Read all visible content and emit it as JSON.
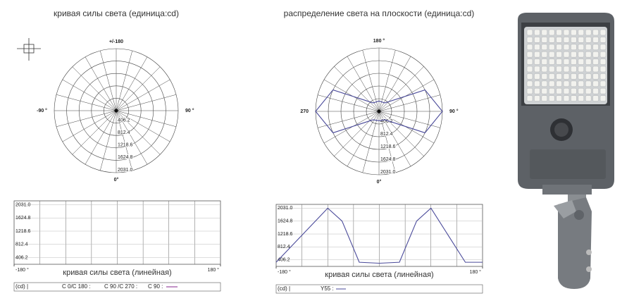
{
  "chart_data": [
    {
      "type": "polar",
      "title": "кривая силы света (единица:cd)",
      "rlim": [
        0,
        2031
      ],
      "rticks": [
        406.2,
        812.4,
        1218.6,
        1624.8,
        {
          "value": 2031,
          "label": "2031.0"
        }
      ],
      "angle_labels": [
        {
          "value": 180,
          "label": "+/-180"
        },
        {
          "value": -90,
          "label": "-90 °"
        },
        {
          "value": 90,
          "label": "90 °"
        },
        {
          "value": 0,
          "label": "0°"
        }
      ],
      "grid": true
    },
    {
      "type": "polar",
      "title": "распределение света на плоскости (единица:cd)",
      "rlim": [
        0,
        2031
      ],
      "rticks": [
        406.2,
        812.4,
        1218.6,
        1624.8,
        {
          "value": 2031,
          "label": "2031.0"
        }
      ],
      "angle_labels": [
        {
          "value": 180,
          "label": "180 °"
        },
        {
          "value": 270,
          "label": "270"
        },
        {
          "value": 90,
          "label": "90 °"
        },
        {
          "value": 0,
          "label": "0°"
        }
      ],
      "grid": true,
      "series": [
        {
          "color": "#4a4a9a",
          "theta": [
            0,
            35,
            65,
            90,
            115,
            145,
            180,
            215,
            245,
            270,
            295,
            325,
            360
          ],
          "values": [
            300,
            330,
            1625,
            2031,
            1625,
            330,
            330,
            330,
            1625,
            2031,
            1625,
            330,
            300
          ]
        }
      ]
    },
    {
      "type": "line",
      "xlabel": "кривая силы света (линейная)",
      "xlim": [
        -180,
        180
      ],
      "xticks": [
        {
          "value": -180,
          "label": "-180 °"
        },
        {
          "value": 180,
          "label": "180 °"
        }
      ],
      "xgrid": [
        -135,
        -90,
        -45,
        0,
        45,
        90,
        135
      ],
      "ylim": [
        200,
        2150
      ],
      "yticks": [
        406.2,
        812.4,
        1218.6,
        1624.8,
        {
          "value": 2031,
          "label": "2031.0"
        }
      ],
      "grid": true,
      "legend": [
        "(cd) |",
        "C 0/C 180 :",
        "C 90 /C 270 :",
        "C 90 :"
      ],
      "legend_color": "#9a4aa0"
    },
    {
      "type": "line",
      "xlabel": "кривая силы света (линейная)",
      "xlim": [
        -180,
        180
      ],
      "xticks": [
        {
          "value": -180,
          "label": "-180 °"
        },
        {
          "value": 180,
          "label": "180 °"
        }
      ],
      "xgrid": [
        -135,
        -90,
        -45,
        0,
        45,
        90,
        135
      ],
      "ylim": [
        200,
        2150
      ],
      "yticks": [
        406.2,
        812.4,
        1218.6,
        1624.8,
        {
          "value": 2031,
          "label": "2031.0"
        }
      ],
      "grid": true,
      "legend": [
        "(cd) |"
      ],
      "series": [
        {
          "name": "Y55 :",
          "color": "#4a4a9a",
          "x": [
            -180,
            -90,
            -65,
            -35,
            0,
            35,
            65,
            90,
            150,
            180
          ],
          "values": [
            330,
            2031,
            1625,
            330,
            300,
            330,
            1625,
            2031,
            330,
            330
          ]
        }
      ]
    }
  ]
}
